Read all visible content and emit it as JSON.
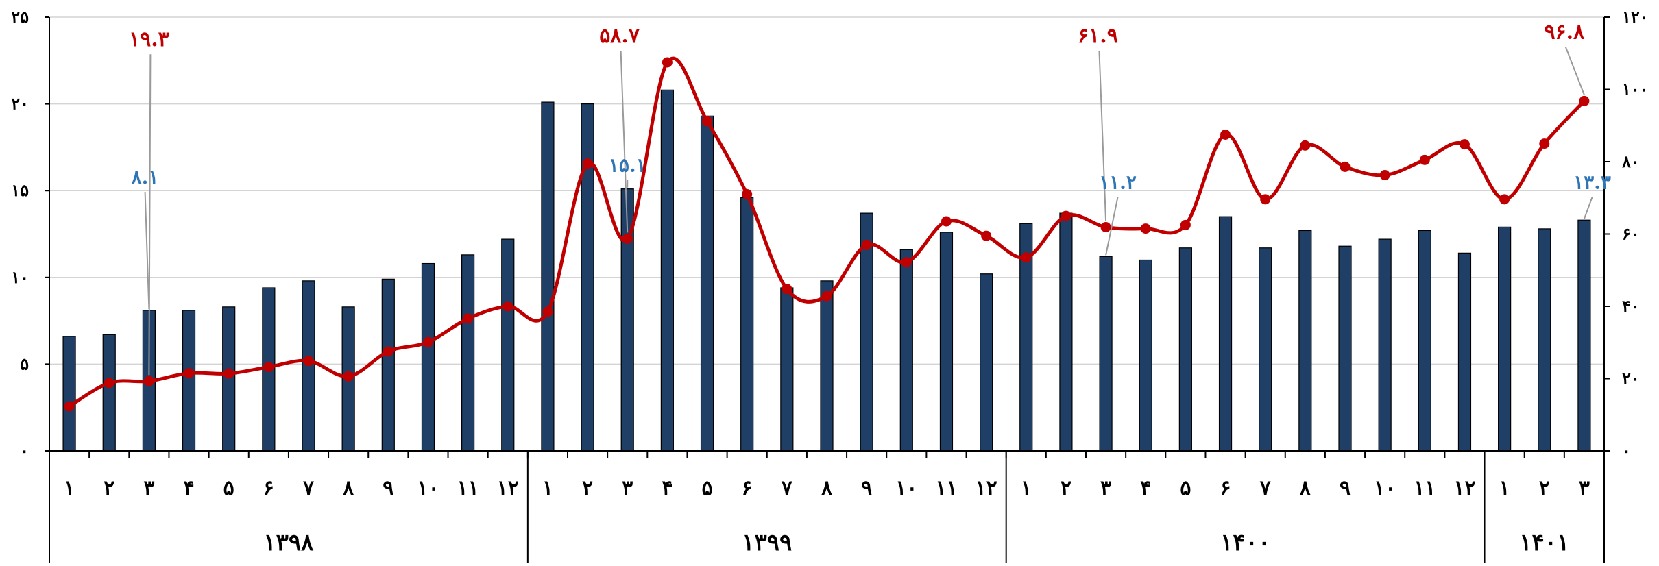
{
  "chart_data": {
    "type": "bar+line",
    "title": "",
    "xlabel": "",
    "ylabel": "",
    "ylabel_right": "",
    "categories": [
      "۱",
      "۲",
      "۳",
      "۴",
      "۵",
      "۶",
      "۷",
      "۸",
      "۹",
      "۱۰",
      "۱۱",
      "۱۲",
      "۱",
      "۲",
      "۳",
      "۴",
      "۵",
      "۶",
      "۷",
      "۸",
      "۹",
      "۱۰",
      "۱۱",
      "۱۲",
      "۱",
      "۲",
      "۳",
      "۴",
      "۵",
      "۶",
      "۷",
      "۸",
      "۹",
      "۱۰",
      "۱۱",
      "۱۲",
      "۱",
      "۲",
      "۳"
    ],
    "year_groups": [
      {
        "label": "۱۳۹۸",
        "count": 12
      },
      {
        "label": "۱۳۹۹",
        "count": 12
      },
      {
        "label": "۱۴۰۰",
        "count": 12
      },
      {
        "label": "۱۴۰۱",
        "count": 3
      }
    ],
    "ylim_left": [
      0,
      25
    ],
    "yticks_left": [
      0,
      5,
      10,
      15,
      20,
      25
    ],
    "ytick_labels_left": [
      "۰",
      "۵",
      "۱۰",
      "۱۵",
      "۲۰",
      "۲۵"
    ],
    "ylim_right": [
      0,
      120
    ],
    "yticks_right": [
      0,
      20,
      40,
      60,
      80,
      100,
      120
    ],
    "ytick_labels_right": [
      "۰",
      "۲۰",
      "۴۰",
      "۶۰",
      "۸۰",
      "۱۰۰",
      "۱۲۰"
    ],
    "grid": true,
    "series": [
      {
        "type": "bar",
        "axis": "left",
        "color": "#1f3f66",
        "values": [
          6.6,
          6.7,
          8.1,
          8.1,
          8.3,
          9.4,
          9.8,
          8.3,
          9.9,
          10.8,
          11.3,
          12.2,
          20.1,
          20.0,
          15.1,
          20.8,
          19.3,
          14.6,
          9.4,
          9.8,
          13.7,
          11.6,
          12.6,
          10.2,
          13.1,
          13.7,
          11.2,
          11.0,
          11.7,
          13.5,
          11.7,
          12.7,
          11.8,
          12.2,
          12.7,
          11.4,
          12.9,
          12.8,
          13.3
        ]
      },
      {
        "type": "line",
        "axis": "right",
        "color": "#c00000",
        "values": [
          12.3,
          18.8,
          19.3,
          21.5,
          21.4,
          23.2,
          24.9,
          20.6,
          27.5,
          30.1,
          36.6,
          40.0,
          38.5,
          79.5,
          58.7,
          107.5,
          91.2,
          71.0,
          44.8,
          42.8,
          57.0,
          52.2,
          63.5,
          59.5,
          53.5,
          65.0,
          61.9,
          61.5,
          62.5,
          87.5,
          69.6,
          84.5,
          78.6,
          76.3,
          80.5,
          84.8,
          69.6,
          85.0,
          96.8
        ]
      }
    ],
    "annotations_red": [
      {
        "index": 2,
        "label": "۱۹.۳",
        "tx": 2,
        "ty": 112
      },
      {
        "index": 14,
        "label": "۵۸.۷",
        "tx": 13.8,
        "ty": 113
      },
      {
        "index": 26,
        "label": "۶۱.۹",
        "tx": 25.8,
        "ty": 113
      },
      {
        "index": 38,
        "label": "۹۶.۸",
        "tx": 37.5,
        "ty": 114
      }
    ],
    "annotations_blue": [
      {
        "index": 2,
        "label": "۸.۱",
        "tx": 1.9,
        "ty": 15.4
      },
      {
        "index": 14,
        "label": "۱۵.۱",
        "tx": 14,
        "ty": 16.1
      },
      {
        "index": 26,
        "label": "۱۱.۲",
        "tx": 26.3,
        "ty": 15.1
      },
      {
        "index": 38,
        "label": "۱۳.۳",
        "tx": 38.2,
        "ty": 15.1
      }
    ]
  }
}
